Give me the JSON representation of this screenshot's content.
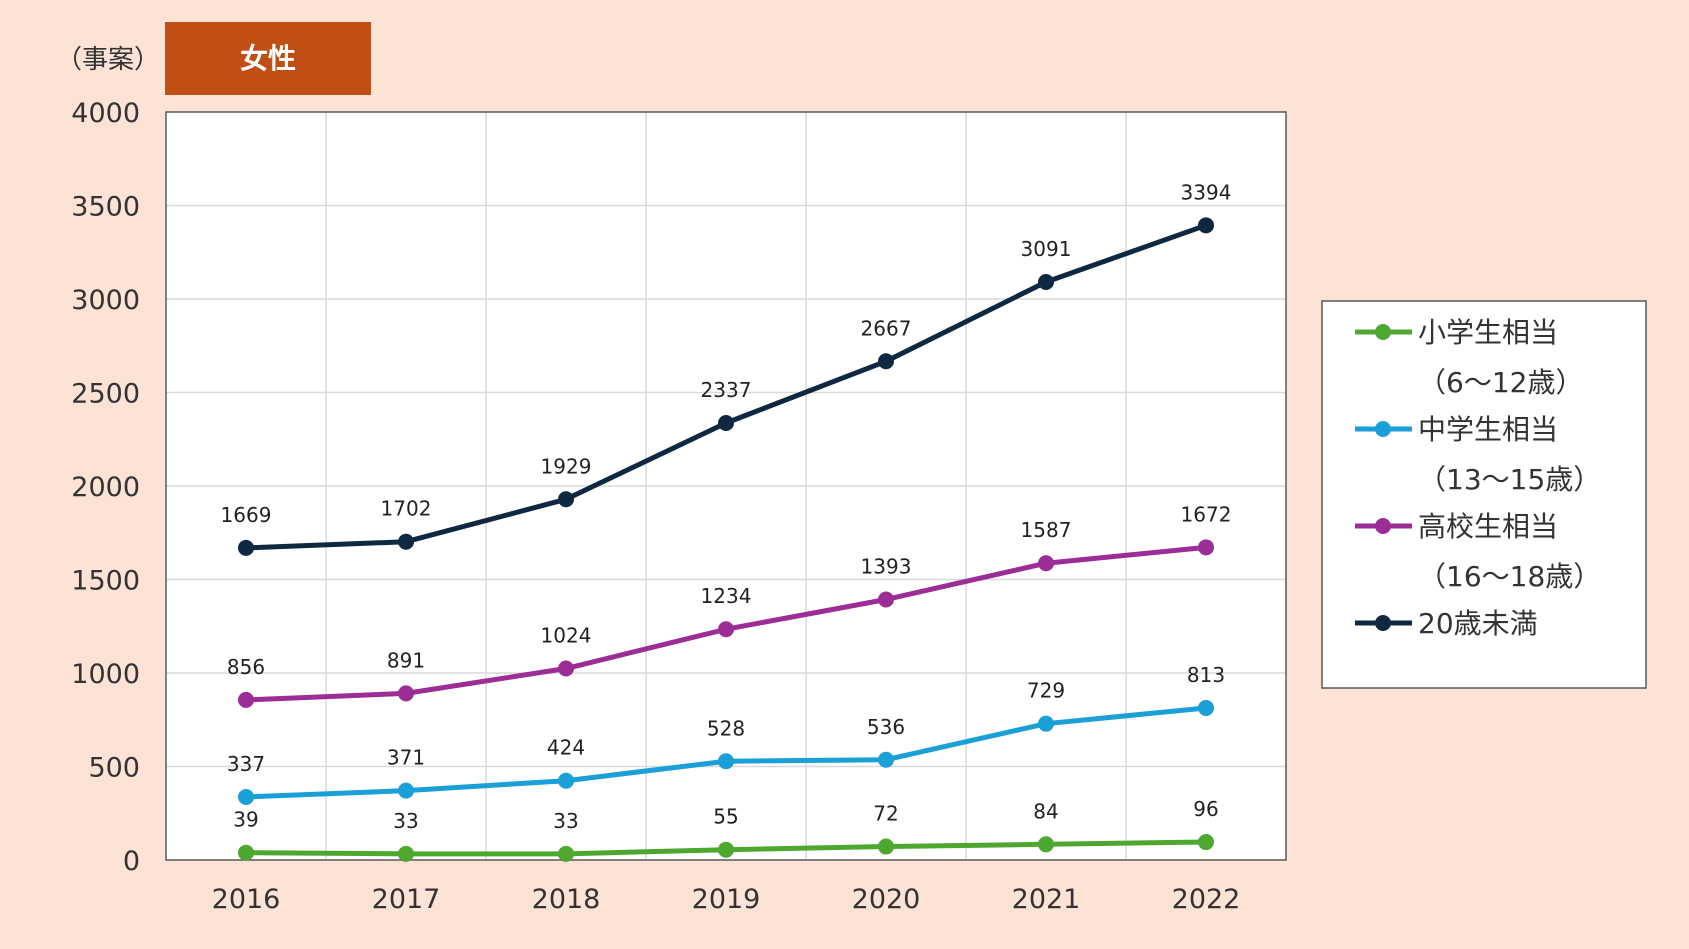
{
  "unit_label": "（事案）",
  "badge_label": "女性",
  "colors": {
    "background": "#fce3d6",
    "badge": "#c04f16",
    "grid": "#d9d9d9",
    "plot_border": "#595959"
  },
  "chart_data": {
    "type": "line",
    "title": "女性",
    "xlabel": "",
    "ylabel": "（事案）",
    "categories": [
      "2016",
      "2017",
      "2018",
      "2019",
      "2020",
      "2021",
      "2022"
    ],
    "ylim": [
      0,
      4000
    ],
    "yticks": [
      0,
      500,
      1000,
      1500,
      2000,
      2500,
      3000,
      3500,
      4000
    ],
    "grid": true,
    "legend_position": "right",
    "series": [
      {
        "name": "小学生相当",
        "name_line2": "（6～12歳）",
        "color": "#4ea72e",
        "values": [
          39,
          33,
          33,
          55,
          72,
          84,
          96
        ]
      },
      {
        "name": "中学生相当",
        "name_line2": "（13～15歳）",
        "color": "#1a9fd6",
        "values": [
          337,
          371,
          424,
          528,
          536,
          729,
          813
        ]
      },
      {
        "name": "高校生相当",
        "name_line2": "（16～18歳）",
        "color": "#9c2c96",
        "values": [
          856,
          891,
          1024,
          1234,
          1393,
          1587,
          1672
        ]
      },
      {
        "name": "20歳未満",
        "name_line2": "",
        "color": "#0e2841",
        "values": [
          1669,
          1702,
          1929,
          2337,
          2667,
          3091,
          3394
        ]
      }
    ]
  }
}
